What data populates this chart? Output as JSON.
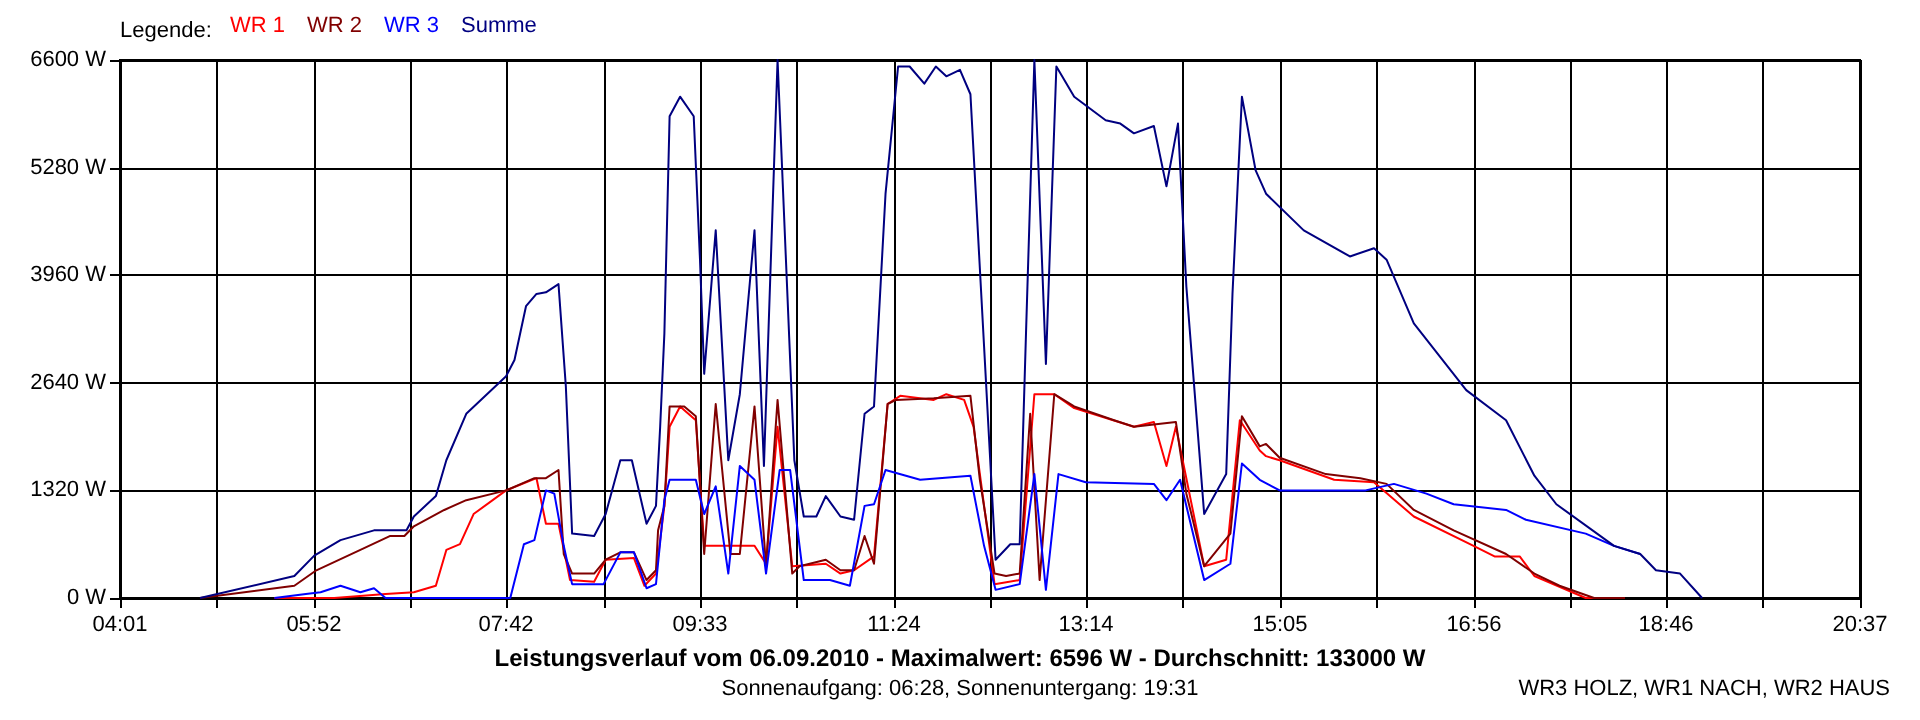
{
  "chart_data": {
    "type": "line",
    "title": "Leistungsverlauf vom 06.09.2010 - Maximalwert: 6596 W - Durchschnitt: 133000 W",
    "subtitle": "Sonnenaufgang: 06:28, Sonnenuntergang: 19:31",
    "annotations": [
      "WR3 HOLZ, WR1 NACH, WR2 HAUS"
    ],
    "legend_title": "Legende:",
    "legend": "top left",
    "grid": true,
    "xlim": [
      4.01667,
      20.61667
    ],
    "xticks": [
      {
        "value": 4.01667,
        "label": "04:01"
      },
      {
        "value": 4.94,
        "label": null
      },
      {
        "value": 5.86667,
        "label": "05:52"
      },
      {
        "value": 6.78,
        "label": null
      },
      {
        "value": 7.7,
        "label": "07:42"
      },
      {
        "value": 8.63,
        "label": null
      },
      {
        "value": 9.55,
        "label": "09:33"
      },
      {
        "value": 10.47,
        "label": null
      },
      {
        "value": 11.4,
        "label": "11:24"
      },
      {
        "value": 12.32,
        "label": null
      },
      {
        "value": 13.23333,
        "label": "13:14"
      },
      {
        "value": 14.16,
        "label": null
      },
      {
        "value": 15.08333,
        "label": "15:05"
      },
      {
        "value": 16.01,
        "label": null
      },
      {
        "value": 16.93333,
        "label": "16:56"
      },
      {
        "value": 17.85,
        "label": null
      },
      {
        "value": 18.76667,
        "label": "18:46"
      },
      {
        "value": 19.69,
        "label": null
      },
      {
        "value": 20.61667,
        "label": "20:37"
      }
    ],
    "ylim": [
      0,
      6600
    ],
    "yticks": [
      {
        "value": 0,
        "label": "0 W"
      },
      {
        "value": 1320,
        "label": "1320 W"
      },
      {
        "value": 2640,
        "label": "2640 W"
      },
      {
        "value": 3960,
        "label": "3960 W"
      },
      {
        "value": 5280,
        "label": "5280 W"
      },
      {
        "value": 6600,
        "label": "6600 W"
      }
    ],
    "series": [
      {
        "name": "WR 1",
        "color": "#ff0000",
        "x": [
          5.49,
          6.06,
          6.55,
          6.82,
          7.03,
          7.13,
          7.26,
          7.39,
          7.7,
          7.99,
          8.08,
          8.2,
          8.31,
          8.54,
          8.65,
          8.92,
          9.02,
          9.13,
          9.21,
          9.26,
          9.36,
          9.51,
          9.59,
          10.07,
          10.18,
          10.29,
          10.43,
          10.75,
          10.89,
          11.02,
          11.21,
          11.34,
          11.46,
          11.78,
          11.9,
          12.07,
          12.16,
          12.36,
          12.6,
          12.74,
          12.93,
          13.12,
          13.69,
          13.88,
          14.0,
          14.09,
          14.36,
          14.57,
          14.7,
          14.89,
          14.95,
          15.08,
          15.6,
          15.98,
          16.36,
          16.93,
          17.13,
          17.37,
          17.51,
          18.0,
          18.37
        ],
        "values": [
          0,
          0,
          50,
          70,
          150,
          590,
          660,
          1030,
          1320,
          1470,
          910,
          910,
          220,
          200,
          470,
          490,
          150,
          300,
          1130,
          2100,
          2350,
          2180,
          640,
          640,
          420,
          2100,
          390,
          420,
          300,
          340,
          510,
          2380,
          2480,
          2430,
          2500,
          2430,
          2100,
          170,
          220,
          2500,
          2500,
          2330,
          2100,
          2160,
          1620,
          2100,
          390,
          470,
          2180,
          1810,
          1740,
          1690,
          1450,
          1420,
          1000,
          640,
          510,
          510,
          270,
          0,
          0
        ]
      },
      {
        "name": "WR 2",
        "color": "#800000",
        "x": [
          4.78,
          5.68,
          5.89,
          6.31,
          6.59,
          6.73,
          6.82,
          7.11,
          7.32,
          7.7,
          7.97,
          8.08,
          8.2,
          8.25,
          8.33,
          8.54,
          8.65,
          8.79,
          8.92,
          9.04,
          9.13,
          9.15,
          9.21,
          9.26,
          9.4,
          9.51,
          9.59,
          9.7,
          9.84,
          9.93,
          10.07,
          10.18,
          10.29,
          10.43,
          10.5,
          10.75,
          10.89,
          11.02,
          11.12,
          11.21,
          11.34,
          11.42,
          11.78,
          12.13,
          12.22,
          12.36,
          12.47,
          12.6,
          12.7,
          12.79,
          12.93,
          13.12,
          13.5,
          13.69,
          14.09,
          14.19,
          14.36,
          14.61,
          14.72,
          14.89,
          14.95,
          15.08,
          15.52,
          15.85,
          16.1,
          16.36,
          16.74,
          17.24,
          17.51,
          17.75,
          18.08,
          18.37
        ],
        "values": [
          0,
          150,
          340,
          590,
          760,
          760,
          880,
          1080,
          1200,
          1320,
          1470,
          1470,
          1570,
          540,
          300,
          300,
          470,
          560,
          560,
          220,
          340,
          830,
          1130,
          2350,
          2350,
          2230,
          540,
          2380,
          540,
          540,
          2350,
          390,
          2430,
          300,
          390,
          470,
          340,
          340,
          760,
          420,
          2380,
          2430,
          2450,
          2480,
          1450,
          300,
          270,
          300,
          2260,
          220,
          2500,
          2350,
          2180,
          2100,
          2160,
          1280,
          390,
          790,
          2230,
          1860,
          1890,
          1720,
          1520,
          1470,
          1400,
          1080,
          830,
          540,
          300,
          150,
          0,
          0
        ]
      },
      {
        "name": "WR 3",
        "color": "#0000ff",
        "x": [
          5.49,
          5.79,
          5.93,
          6.12,
          6.31,
          6.44,
          6.55,
          7.11,
          7.74,
          7.87,
          7.97,
          8.08,
          8.16,
          8.25,
          8.33,
          8.63,
          8.79,
          8.92,
          9.04,
          9.13,
          9.21,
          9.26,
          9.51,
          9.59,
          9.7,
          9.82,
          9.93,
          10.07,
          10.18,
          10.31,
          10.41,
          10.54,
          10.79,
          10.98,
          11.12,
          11.21,
          11.32,
          11.65,
          12.13,
          12.26,
          12.37,
          12.6,
          12.74,
          12.85,
          12.97,
          13.23,
          13.88,
          14.0,
          14.13,
          14.36,
          14.61,
          14.72,
          14.89,
          15.08,
          15.9,
          16.17,
          16.48,
          16.74,
          17.24,
          17.43,
          18.0,
          18.27,
          18.52
        ],
        "values": [
          0,
          50,
          70,
          150,
          70,
          120,
          0,
          0,
          0,
          660,
          710,
          1320,
          1280,
          640,
          170,
          170,
          560,
          560,
          120,
          170,
          1200,
          1450,
          1450,
          1030,
          1370,
          300,
          1620,
          1450,
          300,
          1570,
          1570,
          220,
          220,
          150,
          1130,
          1150,
          1570,
          1450,
          1500,
          640,
          100,
          170,
          1520,
          100,
          1520,
          1420,
          1400,
          1200,
          1450,
          220,
          420,
          1650,
          1450,
          1320,
          1320,
          1400,
          1280,
          1150,
          1080,
          960,
          790,
          640,
          540
        ]
      },
      {
        "name": "Summe",
        "color": "#000080",
        "x": [
          4.78,
          5.68,
          5.87,
          6.12,
          6.44,
          6.75,
          6.82,
          7.03,
          7.13,
          7.32,
          7.7,
          7.78,
          7.89,
          7.99,
          8.08,
          8.2,
          8.27,
          8.33,
          8.54,
          8.65,
          8.79,
          8.9,
          9.04,
          9.13,
          9.17,
          9.21,
          9.26,
          9.36,
          9.49,
          9.55,
          9.59,
          9.7,
          9.82,
          9.93,
          10.07,
          10.16,
          10.29,
          10.45,
          10.54,
          10.66,
          10.75,
          10.89,
          11.02,
          11.12,
          11.21,
          11.32,
          11.44,
          11.55,
          11.69,
          11.8,
          11.9,
          12.03,
          12.13,
          12.26,
          12.37,
          12.51,
          12.6,
          12.66,
          12.74,
          12.85,
          12.95,
          13.12,
          13.42,
          13.56,
          13.69,
          13.88,
          14.0,
          14.11,
          14.19,
          14.36,
          14.57,
          14.63,
          14.72,
          14.85,
          14.95,
          15.31,
          15.75,
          15.98,
          16.1,
          16.36,
          16.86,
          17.24,
          17.51,
          17.72,
          18.27,
          18.52,
          18.67,
          18.9,
          19.11
        ],
        "values": [
          0,
          270,
          520,
          710,
          830,
          830,
          1000,
          1250,
          1690,
          2260,
          2720,
          2920,
          3580,
          3730,
          3750,
          3850,
          2600,
          790,
          760,
          1030,
          1690,
          1690,
          910,
          1130,
          2100,
          3240,
          5910,
          6150,
          5910,
          4150,
          2750,
          4510,
          1690,
          2500,
          4510,
          1620,
          6600,
          1690,
          1000,
          1000,
          1250,
          1000,
          960,
          2260,
          2350,
          4960,
          6520,
          6520,
          6310,
          6520,
          6400,
          6480,
          6180,
          3090,
          470,
          660,
          660,
          3240,
          6600,
          2870,
          6520,
          6150,
          5860,
          5820,
          5700,
          5790,
          5050,
          5820,
          3820,
          1030,
          1520,
          3730,
          6150,
          5250,
          4960,
          4510,
          4190,
          4290,
          4150,
          3370,
          2550,
          2180,
          1500,
          1150,
          640,
          540,
          340,
          300,
          0
        ]
      }
    ]
  }
}
